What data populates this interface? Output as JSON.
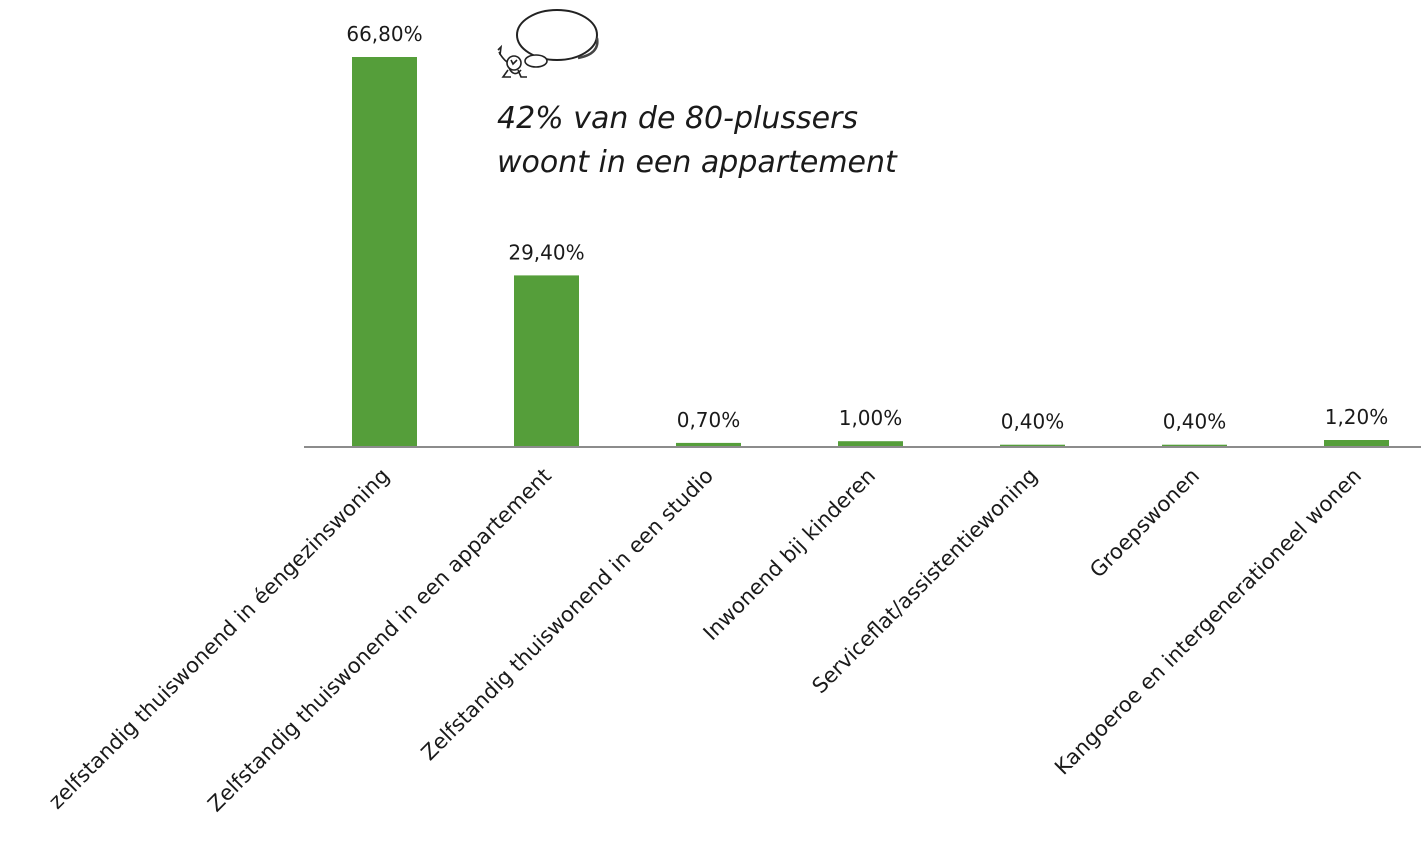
{
  "chart_data": {
    "type": "bar",
    "categories": [
      "zelfstandig thuiswonend in éengezinswoning",
      "Zelfstandig thuiswonend in een appartement",
      "Zelfstandig thuiswonend in een studio",
      "Inwonend bij kinderen",
      "Serviceflat/assistentiewoning",
      "Groepswonen",
      "Kangoeroe en intergenerationeel wonen"
    ],
    "values": [
      66.8,
      29.4,
      0.7,
      1.0,
      0.4,
      0.4,
      1.2
    ],
    "value_labels": [
      "66,80%",
      "29,40%",
      "0,70%",
      "1,00%",
      "0,40%",
      "0,40%",
      "1,20%"
    ],
    "ylim": [
      0,
      70
    ],
    "unit": "%",
    "grid": false,
    "legend": "none",
    "bar_color": "#559e3a",
    "axis_color": "#8c8c8c",
    "annotation": {
      "lines": [
        "42% van de 80-plussers",
        "woont in een appartement"
      ],
      "icon": "thinking-figure-icon"
    }
  }
}
